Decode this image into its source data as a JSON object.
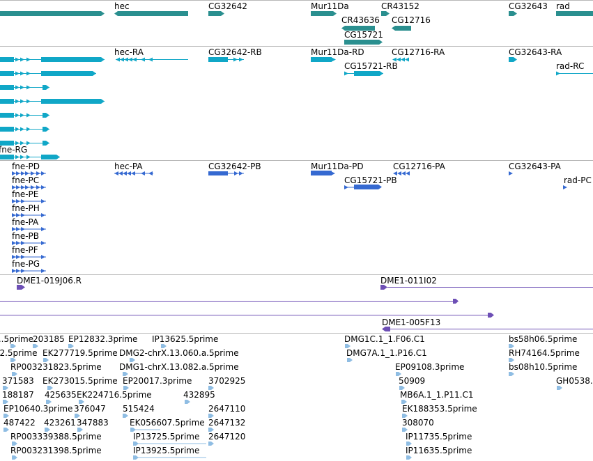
{
  "colors": {
    "gene": "#2a8f8f",
    "mrna": "#10a7c7",
    "protein": "#3569d1",
    "clone": "#6d4fb5",
    "est": "#8fbde3",
    "separator": "#b8b8b8"
  },
  "tracks": {
    "genes": {
      "labels": [
        "hec",
        "CG32642",
        "Mur11Da",
        "CR43152",
        "CG32643",
        "rad",
        "CR43636",
        "CG12716",
        "CG15721"
      ]
    },
    "transcripts": {
      "labels": [
        "hec-RA",
        "CG32642-RB",
        "Mur11Da-RD",
        "CG12716-RA",
        "CG32643-RA",
        "CG15721-RB",
        "rad-RC",
        "fne-RG"
      ]
    },
    "proteins": {
      "labels": [
        "fne-PD",
        "hec-PA",
        "CG32642-PB",
        "Mur11Da-PD",
        "CG12716-PA",
        "CG32643-PA",
        "fne-PC",
        "CG15721-PB",
        "rad-PC",
        "fne-PE",
        "fne-PH",
        "fne-PA",
        "fne-PB",
        "fne-PF",
        "fne-PG"
      ]
    },
    "clones": {
      "labels": [
        "DME1-019J06.R",
        "DME1-011I02",
        "DME1-005F13"
      ]
    },
    "ests": {
      "labels": [
        "...5prime",
        "203185",
        "EP12832.3prime",
        "IP13625.5prime",
        "DMG1C.1_1.F06.C1",
        "bs58h06.5prime",
        "...2.5prime",
        "EK277719.5prime",
        "DMG2-chrX.13.060.a.5prime",
        "DMG7A.1_1.P16.C1",
        "RH74164.5prime",
        "RP003231823.5prime",
        "DMG1-chrX.13.082.a.5prime",
        "EP09108.3prime",
        "bs08h10.5prime",
        "371583",
        "EK273015.5prime",
        "EP20017.3prime",
        "3702925",
        "50909",
        "GH0538...",
        "188187",
        "425635",
        "EK224716.5prime",
        "432895",
        "MB6A.1_1.P11.C1",
        "EP10640.3prime",
        "376047",
        "515424",
        "2647110",
        "EK188353.5prime",
        "487422",
        "423261",
        "347883",
        "EK056607.5prime",
        "2647132",
        "308070",
        "RP003339388.5prime",
        "IP13725.5prime",
        "2647120",
        "IP11735.5prime",
        "RP003231398.5prime",
        "IP13925.5prime",
        "IP11635.5prime"
      ]
    }
  }
}
